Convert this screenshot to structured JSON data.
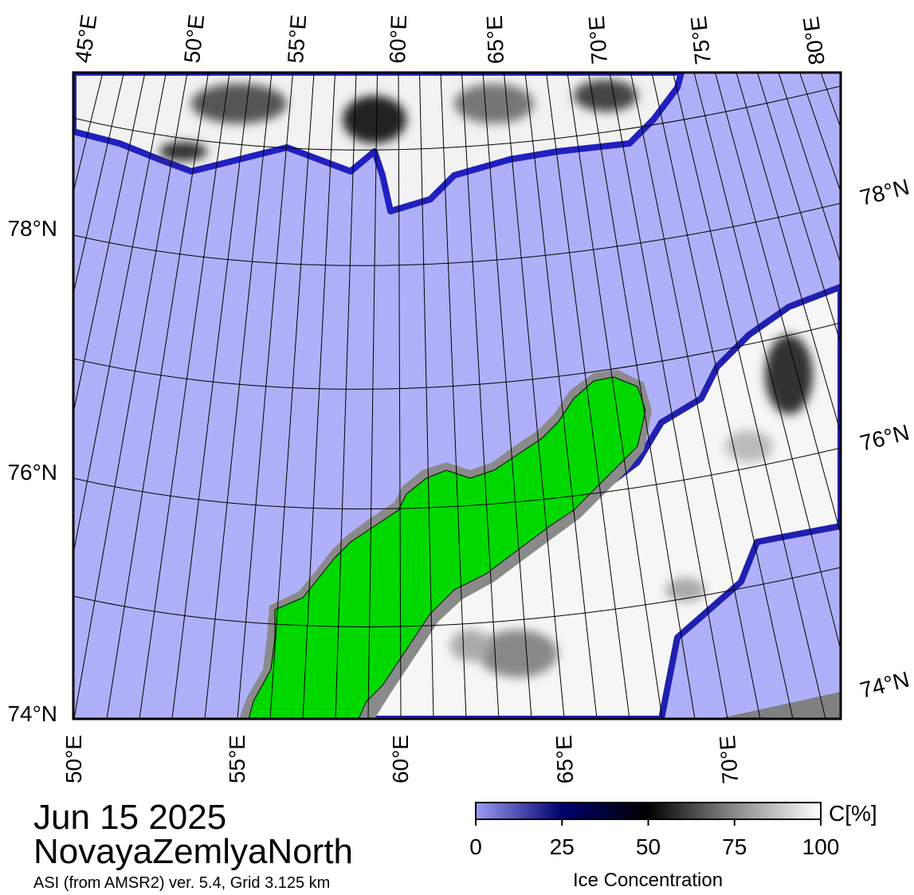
{
  "map": {
    "top_lon_labels": [
      "45°E",
      "50°E",
      "55°E",
      "60°E",
      "65°E",
      "70°E",
      "75°E",
      "80°E"
    ],
    "bottom_lon_labels": [
      "50°E",
      "55°E",
      "60°E",
      "65°E",
      "70°E"
    ],
    "left_lat_labels": [
      "78°N",
      "76°N",
      "74°N"
    ],
    "right_lat_labels": [
      "78°N",
      "76°N",
      "74°N"
    ],
    "date": "Jun 15 2025",
    "region": "NovayaZemlyaNorth",
    "source": "ASI (from AMSR2) ver. 5.4,  Grid 3.125 km"
  },
  "colorbar": {
    "lim": [
      0,
      100
    ],
    "ticks": [
      0,
      25,
      50,
      75,
      100
    ],
    "unit": "C[%]",
    "label": "Ice Concentration"
  }
}
